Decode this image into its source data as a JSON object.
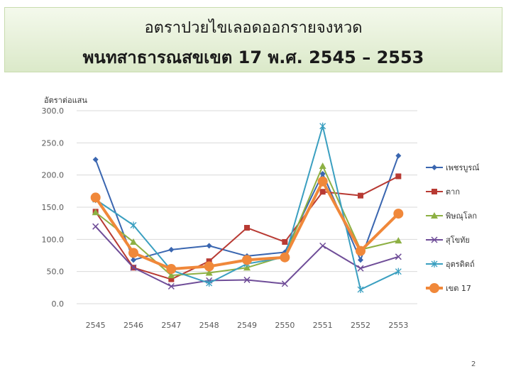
{
  "slide": {
    "title_line1": "อตราปวยไขเลอดออกรายจงหวด",
    "title_line2": "พนทสาธารณสขเขต 17 พ.ศ. 2545 – 2553",
    "page_number": "2"
  },
  "chart_data": {
    "type": "line",
    "title": "",
    "xlabel": "",
    "ylabel": "อัตราต่อแสน",
    "ylim": [
      0,
      300
    ],
    "yticks": [
      "0.0",
      "50.0",
      "100.0",
      "150.0",
      "200.0",
      "250.0",
      "300.0"
    ],
    "grid": true,
    "legend_position": "right",
    "categories": [
      "2545",
      "2546",
      "2547",
      "2548",
      "2549",
      "2550",
      "2551",
      "2552",
      "2553"
    ],
    "series": [
      {
        "name": "เพชรบูรณ์",
        "color": "#3a66b0",
        "marker": "diamond",
        "values": [
          224,
          68,
          84,
          90,
          74,
          80,
          202,
          68,
          230
        ]
      },
      {
        "name": "ตาก",
        "color": "#b83a33",
        "marker": "square",
        "values": [
          143,
          56,
          38,
          66,
          118,
          96,
          174,
          168,
          198
        ]
      },
      {
        "name": "พิษณุโลก",
        "color": "#8db043",
        "marker": "triangle",
        "values": [
          142,
          96,
          44,
          48,
          56,
          74,
          214,
          84,
          98
        ]
      },
      {
        "name": "สุโขทัย",
        "color": "#6f4d98",
        "marker": "x",
        "values": [
          120,
          56,
          27,
          36,
          37,
          31,
          90,
          55,
          73
        ]
      },
      {
        "name": "อุตรดิตถ์",
        "color": "#3a9fc0",
        "marker": "star",
        "values": [
          162,
          122,
          52,
          32,
          62,
          72,
          276,
          22,
          50
        ]
      },
      {
        "name": "เขต 17",
        "color": "#f0883a",
        "marker": "circle",
        "values": [
          165,
          79,
          54,
          58,
          68,
          72,
          190,
          82,
          140
        ]
      }
    ]
  }
}
